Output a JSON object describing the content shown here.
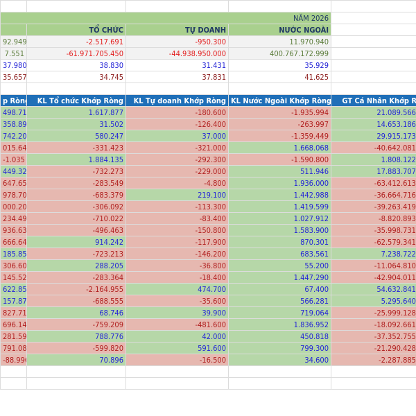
{
  "summary": {
    "title": "NĂM 2026",
    "headers": [
      "",
      "TỔ CHỨC",
      "TỰ DOANH",
      "NƯỚC NGOÀI"
    ],
    "rows": [
      [
        "92.949",
        "-2.517.691",
        "-950.300",
        "11.970.940"
      ],
      [
        "7.551",
        "-61.971.705.450",
        "-44.938.950.000",
        "400.767.172.999"
      ],
      [
        "37.980",
        "38.830",
        "31.431",
        "35.929"
      ],
      [
        "35.657",
        "34.745",
        "37.831",
        "41.625"
      ]
    ]
  },
  "table": {
    "headers": [
      "p Ròng",
      "KL Tổ chức Khớp Ròng",
      "KL Tự doanh Khớp Ròng",
      "KL Nước Ngoài Khớp Ròng",
      "GT Cá Nhân Khớp Ròng"
    ],
    "col_a_negative": [
      false,
      false,
      false,
      true,
      true,
      false,
      true,
      true,
      true,
      true,
      true,
      true,
      false,
      true,
      true,
      false,
      false,
      true,
      true,
      true,
      true,
      true
    ],
    "rows": [
      [
        "498.717",
        "1.617.877",
        "-180.600",
        "-1.935.994",
        "21.089.566.901"
      ],
      [
        "358.895",
        "31.502",
        "-126.400",
        "-263.997",
        "14.653.186.550"
      ],
      [
        "742.202",
        "580.247",
        "37.000",
        "-1.359.449",
        "29.915.173.800"
      ],
      [
        "015.645",
        "-331.423",
        "-321.000",
        "1.668.068",
        "-40.642.081.800"
      ],
      [
        "-1.035",
        "1.884.135",
        "-292.300",
        "-1.590.800",
        "1.808.122.950"
      ],
      [
        "449.327",
        "-732.273",
        "-229.000",
        "511.946",
        "17.883.707.700"
      ],
      [
        "647.651",
        "-283.549",
        "-4.800",
        "1.936.000",
        "-63.412.613.000"
      ],
      [
        "978.709",
        "-683.379",
        "219.100",
        "1.442.988",
        "-36.664.716.600"
      ],
      [
        "000.207",
        "-306.092",
        "-113.300",
        "1.419.599",
        "-39.263.419.699"
      ],
      [
        "234.490",
        "-710.022",
        "-83.400",
        "1.027.912",
        "-8.820.893.750"
      ],
      [
        "936.637",
        "-496.463",
        "-150.800",
        "1.583.900",
        "-35.998.731.500"
      ],
      [
        "666.643",
        "914.242",
        "-117.900",
        "870.301",
        "-62.579.341.601"
      ],
      [
        "185.852",
        "-723.213",
        "-146.200",
        "683.561",
        "7.238.722.050"
      ],
      [
        "306.605",
        "288.205",
        "-36.800",
        "55.200",
        "-11.064.810.400"
      ],
      [
        "145.526",
        "-283.364",
        "-18.400",
        "1.447.290",
        "-42.904.011.400"
      ],
      [
        "622.855",
        "-2.164.955",
        "474.700",
        "67.400",
        "54.632.841.200"
      ],
      [
        "157.874",
        "-688.555",
        "-35.600",
        "566.281",
        "5.295.640.449"
      ],
      [
        "827.710",
        "68.746",
        "39.900",
        "719.064",
        "-25.999.128.200"
      ],
      [
        "696.143",
        "-759.209",
        "-481.600",
        "1.836.952",
        "-18.092.661.251"
      ],
      [
        "281.594",
        "788.776",
        "42.000",
        "450.818",
        "-37.352.755.850"
      ],
      [
        "791.080",
        "-599.820",
        "591.600",
        "799.300",
        "-21.290.428.250"
      ],
      [
        "-88.996",
        "70.896",
        "-16.500",
        "34.600",
        "-2.287.885.850"
      ]
    ]
  }
}
